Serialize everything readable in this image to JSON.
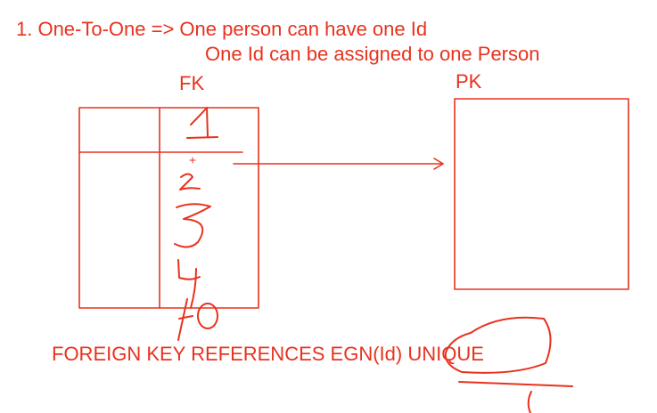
{
  "text": {
    "title_line1": "1. One-To-One => One person can have one Id",
    "title_line2": "One Id can be assigned to one Person",
    "fk_label": "FK",
    "pk_label": "PK",
    "bottom_text": "FOREIGN KEY REFERENCES EGN(Id) UNIQUE"
  },
  "handwritten_values": [
    "1",
    "2",
    "3",
    "4",
    "10"
  ],
  "colors": {
    "ink": "#e8321e",
    "background": "#ffffff"
  }
}
